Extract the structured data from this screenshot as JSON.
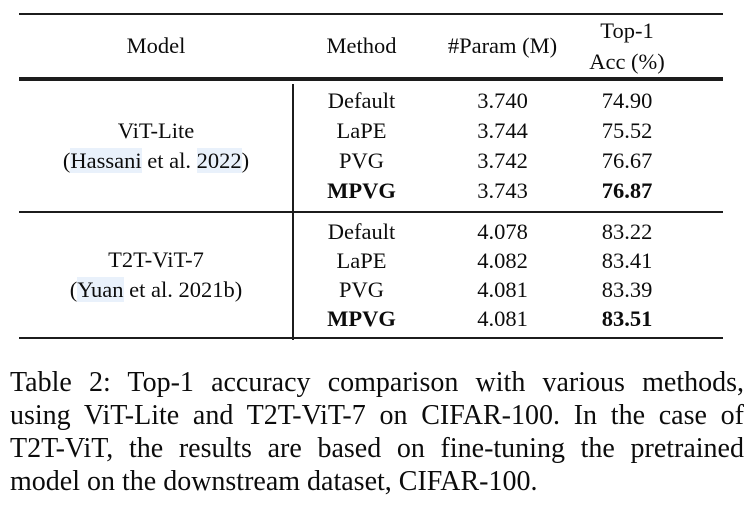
{
  "table": {
    "header": {
      "model": "Model",
      "method": "Method",
      "param": "#Param (M)",
      "acc_line1": "Top-1",
      "acc_line2": "Acc (%)"
    },
    "groups": [
      {
        "model_name": "ViT-Lite",
        "cite": {
          "open": "(",
          "author": "Hassani",
          "mid": " et al. ",
          "year": "2022",
          "close": ")"
        },
        "rows": [
          {
            "method": "Default",
            "param": "3.740",
            "acc": "74.90"
          },
          {
            "method": "LaPE",
            "param": "3.744",
            "acc": "75.52"
          },
          {
            "method": "PVG",
            "param": "3.742",
            "acc": "76.67"
          },
          {
            "method": "MPVG",
            "param": "3.743",
            "acc": "76.87"
          }
        ]
      },
      {
        "model_name": "T2T-ViT-7",
        "cite": {
          "open": "(",
          "author": "Yuan",
          "mid": " et al. ",
          "year": "2021b",
          "close": ")"
        },
        "rows": [
          {
            "method": "Default",
            "param": "4.078",
            "acc": "83.22"
          },
          {
            "method": "LaPE",
            "param": "4.082",
            "acc": "83.41"
          },
          {
            "method": "PVG",
            "param": "4.081",
            "acc": "83.39"
          },
          {
            "method": "MPVG",
            "param": "4.081",
            "acc": "83.51"
          }
        ]
      }
    ]
  },
  "caption": {
    "text": "Table 2: Top-1 accuracy comparison with various methods, using ViT-Lite and T2T-ViT-7 on CIFAR-100. In the case of T2T-ViT, the results are based on fine-tuning the pretrained model on the downstream dataset, CIFAR-100.",
    "lines": [
      "Table 2: Top-1 accuracy comparison with various methods,",
      "using ViT-Lite and T2T-ViT-7 on CIFAR-100. In the case of",
      "T2T-ViT, the results are based on fine-tuning the pretrained",
      "model on the downstream dataset, CIFAR-100."
    ]
  },
  "colors": {
    "background": "#ffffff",
    "text": "#0c0c0c",
    "rule": "#1c1c1c",
    "citation_highlight": "#e9f1fb"
  }
}
